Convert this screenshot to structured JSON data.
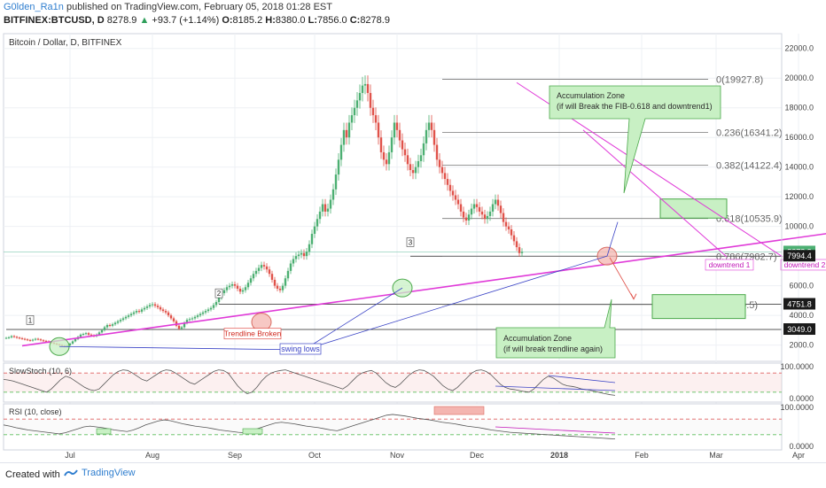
{
  "header": {
    "user": "G0lden_Ra1n",
    "published": "published on TradingView.com, February 05, 2018 01:28 EST",
    "symbol": "BITFINEX:BTCUSD, D",
    "last": "8278.9",
    "change": "+93.7 (+1.14%)",
    "o_label": "O:",
    "o": "8185.2",
    "h_label": "H:",
    "h": "8380.0",
    "l_label": "L:",
    "l": "7856.0",
    "c_label": "C:",
    "c": "8278.9"
  },
  "chart_data": {
    "type": "candlestick",
    "title": "Bitcoin / Dollar, D, BITFINEX",
    "x_ticks": [
      "Jul",
      "Aug",
      "Sep",
      "Oct",
      "Nov",
      "Dec",
      "2018",
      "Feb",
      "Mar",
      "Apr"
    ],
    "y_ticks": [
      "2000.0",
      "4000.0",
      "6000.0",
      "8000.0",
      "10000.0",
      "12000.0",
      "14000.0",
      "16000.0",
      "18000.0",
      "20000.0",
      "22000.0"
    ],
    "ylim": [
      900,
      23000
    ],
    "price_badges": [
      {
        "label": "8278.9",
        "value": 8278.9,
        "color": "#4caf72"
      },
      {
        "label": "7994.4",
        "value": 7994.4,
        "color": "#1a1a1a"
      },
      {
        "label": "4751.8",
        "value": 4751.8,
        "color": "#1a1a1a"
      },
      {
        "label": "3049.0",
        "value": 3049.0,
        "color": "#1a1a1a"
      }
    ],
    "fib_levels": [
      {
        "label": "0(19927.8)",
        "value": 19927.8
      },
      {
        "label": "0.236(16341.2)",
        "value": 16341.2
      },
      {
        "label": "0.382(14122.4)",
        "value": 14122.4
      },
      {
        "label": "0.618(10535.9)",
        "value": 10535.9
      },
      {
        "label": "0.786(7982.7)",
        "value": 7982.7
      },
      {
        "label": "1(4730.5)",
        "value": 4730.5
      }
    ],
    "candles_close": [
      2480,
      2520,
      2600,
      2550,
      2500,
      2460,
      2420,
      2380,
      2340,
      2300,
      2360,
      2420,
      2380,
      2320,
      2280,
      2250,
      2200,
      2150,
      2100,
      2050,
      2000,
      1950,
      1900,
      1980,
      2100,
      2250,
      2400,
      2550,
      2700,
      2750,
      2800,
      2700,
      2650,
      2600,
      2700,
      2850,
      3000,
      3200,
      3350,
      3300,
      3400,
      3500,
      3600,
      3700,
      3800,
      3900,
      4000,
      4100,
      4200,
      4300,
      4250,
      4400,
      4500,
      4600,
      4700,
      4750,
      4650,
      4550,
      4400,
      4300,
      4200,
      4000,
      3800,
      3600,
      3300,
      3100,
      3200,
      3500,
      3700,
      3750,
      3800,
      3900,
      4000,
      4100,
      4200,
      4300,
      4400,
      4500,
      4700,
      4900,
      5200,
      5500,
      5700,
      5900,
      6000,
      6100,
      6000,
      5800,
      5600,
      5700,
      5900,
      6200,
      6500,
      6800,
      7000,
      7200,
      7400,
      7300,
      7100,
      6800,
      6400,
      6000,
      5800,
      5700,
      6000,
      6500,
      7000,
      7500,
      7800,
      8000,
      8100,
      8200,
      8000,
      8300,
      8800,
      9500,
      10000,
      10500,
      11000,
      11500,
      11000,
      11200,
      11800,
      12500,
      13500,
      14500,
      15500,
      16500,
      16000,
      17000,
      17500,
      18000,
      18500,
      19000,
      19500,
      19600,
      19000,
      18000,
      17500,
      17000,
      16000,
      15000,
      14500,
      14200,
      15000,
      16000,
      17000,
      16500,
      15800,
      15200,
      14800,
      14200,
      13800,
      13600,
      14000,
      14400,
      14800,
      15600,
      16500,
      17000,
      16500,
      15500,
      14500,
      14000,
      13600,
      13200,
      12800,
      12400,
      12100,
      11800,
      11500,
      11000,
      10600,
      10400,
      10800,
      11200,
      11500,
      11300,
      11000,
      10800,
      10500,
      10700,
      11000,
      11500,
      11800,
      11400,
      10900,
      10300,
      10000,
      9800,
      9400,
      9000,
      8600,
      8200,
      8278.9
    ],
    "candles_range_days": {
      "start_day": -24,
      "step_days": 1
    },
    "dates_axis": {
      "Jul": 0,
      "Aug": 31,
      "Sep": 62,
      "Oct": 92,
      "Nov": 123,
      "Dec": 153,
      "2018": 184,
      "Feb": 215,
      "Mar": 243,
      "Apr": 274
    },
    "trendline": {
      "start": {
        "day": -18,
        "value": 1950
      },
      "end": {
        "day": 306,
        "value": 10050
      }
    },
    "downtrend_1": {
      "start": {
        "day": 193,
        "value": 16500
      },
      "end": {
        "day": 247,
        "value": 7950
      },
      "label": "downtrend 1"
    },
    "downtrend_2": {
      "start": {
        "day": 168,
        "value": 19700
      },
      "end": {
        "day": 268,
        "value": 7950
      },
      "label": "downtrend 2"
    },
    "wave_labels": [
      {
        "label": "1",
        "day": -15,
        "value": 3450
      },
      {
        "label": "2",
        "day": 56,
        "value": 5250
      },
      {
        "label": "3",
        "day": 128,
        "value": 8700
      }
    ],
    "horizontal_levels": [
      {
        "value": 3049.0,
        "from_day": -24
      },
      {
        "value": 4751.8,
        "from_day": 56
      },
      {
        "value": 7994.4,
        "from_day": 128
      }
    ],
    "annotations": {
      "accumulation_zone_1": {
        "title": "Accumulation Zone",
        "detail": "(if will Break the FIB-0.618 and downtrend1)"
      },
      "accumulation_zone_2": {
        "title": "Accumulation Zone",
        "detail": "(if will break trendline again)"
      },
      "trendline_broken": "Trendline Broken",
      "swing_lows": "swing lows"
    },
    "zones": [
      {
        "day_from": 222,
        "day_to": 247,
        "value_from": 10560,
        "value_to": 11850
      },
      {
        "day_from": 219,
        "day_to": 254,
        "value_from": 3790,
        "value_to": 5400
      }
    ]
  },
  "slowstoch": {
    "title": "SlowStoch (10, 6)",
    "y_ticks": [
      "0.0000",
      "100.0000"
    ],
    "values": [
      60,
      58,
      55,
      50,
      45,
      40,
      35,
      30,
      25,
      20,
      30,
      45,
      60,
      70,
      65,
      55,
      45,
      35,
      28,
      25,
      30,
      45,
      60,
      75,
      85,
      90,
      88,
      80,
      70,
      60,
      55,
      65,
      75,
      85,
      90,
      88,
      80,
      70,
      60,
      50,
      45,
      55,
      65,
      75,
      85,
      90,
      88,
      80,
      60,
      40,
      25,
      15,
      20,
      35,
      55,
      70,
      80,
      85,
      88,
      90,
      85,
      80,
      75,
      70,
      65,
      60,
      55,
      50,
      45,
      40,
      35,
      30,
      40,
      55,
      70,
      80,
      85,
      88,
      80,
      65,
      50,
      40,
      35,
      45,
      60,
      75,
      85,
      90,
      88,
      80,
      70,
      55,
      40,
      30,
      25,
      35,
      50,
      65,
      80,
      88,
      90,
      85,
      75,
      60,
      45,
      35,
      30,
      28,
      25,
      22,
      20,
      30,
      45,
      60,
      70,
      65,
      55,
      45,
      40,
      38,
      35,
      30,
      28,
      25,
      22,
      18,
      15,
      12,
      10
    ]
  },
  "rsi": {
    "title": "RSI (10, close)",
    "y_ticks": [
      "0.0000",
      "100.0000"
    ],
    "values": [
      55,
      52,
      48,
      45,
      42,
      40,
      38,
      36,
      34,
      32,
      35,
      40,
      45,
      50,
      52,
      50,
      48,
      45,
      42,
      40,
      38,
      42,
      48,
      55,
      60,
      65,
      68,
      66,
      62,
      58,
      55,
      52,
      50,
      48,
      45,
      42,
      40,
      38,
      36,
      35,
      40,
      45,
      50,
      55,
      60,
      62,
      60,
      58,
      55,
      52,
      50,
      48,
      45,
      42,
      40,
      45,
      50,
      55,
      60,
      65,
      70,
      75,
      80,
      82,
      80,
      78,
      75,
      72,
      70,
      68,
      65,
      62,
      60,
      58,
      55,
      52,
      50,
      48,
      45,
      42,
      40,
      38,
      36,
      35,
      34,
      33,
      32,
      31,
      30,
      29,
      28,
      27,
      26,
      25,
      24,
      23,
      22,
      21,
      20,
      19
    ]
  },
  "footer": {
    "made": "Created with",
    "brand": "TradingView"
  }
}
